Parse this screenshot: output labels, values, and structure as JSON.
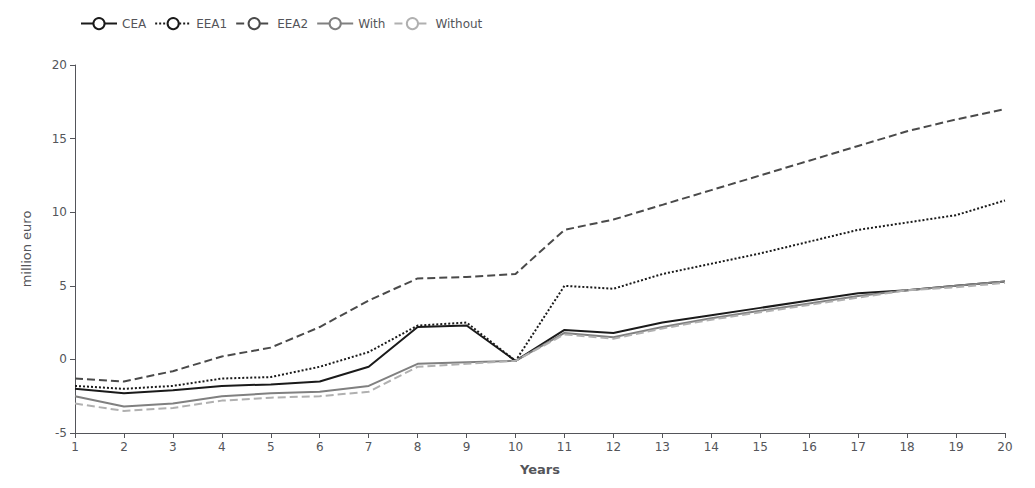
{
  "chart_data": {
    "type": "line",
    "x": [
      1,
      2,
      3,
      4,
      5,
      6,
      7,
      8,
      9,
      10,
      11,
      12,
      13,
      14,
      15,
      16,
      17,
      18,
      19,
      20
    ],
    "xlim": [
      1,
      20
    ],
    "xticks": [
      1,
      2,
      3,
      4,
      5,
      6,
      7,
      8,
      9,
      10,
      11,
      12,
      13,
      14,
      15,
      16,
      17,
      18,
      19,
      20
    ],
    "ylim": [
      -5,
      20
    ],
    "yticks": [
      -5,
      0,
      5,
      10,
      15,
      20
    ],
    "xlabel": "Years",
    "ylabel": "million euro",
    "legend": "upper left",
    "grid": false,
    "series": [
      {
        "name": "CEA",
        "color": "#1a1a1a",
        "line_style": "solid",
        "values": [
          -2.0,
          -2.3,
          -2.1,
          -1.8,
          -1.7,
          -1.5,
          -0.5,
          2.2,
          2.3,
          -0.1,
          2.0,
          1.8,
          2.5,
          3.0,
          3.5,
          4.0,
          4.5,
          4.7,
          5.0,
          5.3
        ]
      },
      {
        "name": "EEA1",
        "color": "#1a1a1a",
        "line_style": "dotted",
        "values": [
          -1.8,
          -2.0,
          -1.8,
          -1.3,
          -1.2,
          -0.5,
          0.5,
          2.3,
          2.5,
          -0.1,
          5.0,
          4.8,
          5.8,
          6.5,
          7.2,
          8.0,
          8.8,
          9.3,
          9.8,
          10.8
        ]
      },
      {
        "name": "EEA2",
        "color": "#4a4a4a",
        "line_style": "dashed",
        "values": [
          -1.3,
          -1.5,
          -0.8,
          0.2,
          0.8,
          2.2,
          4.0,
          5.5,
          5.6,
          5.8,
          8.8,
          9.5,
          10.5,
          11.5,
          12.5,
          13.5,
          14.5,
          15.5,
          16.3,
          17.0
        ]
      },
      {
        "name": "With",
        "color": "#808080",
        "line_style": "solid",
        "values": [
          -2.5,
          -3.2,
          -3.0,
          -2.5,
          -2.3,
          -2.2,
          -1.8,
          -0.3,
          -0.2,
          -0.1,
          1.8,
          1.5,
          2.2,
          2.8,
          3.3,
          3.8,
          4.3,
          4.7,
          5.0,
          5.3
        ]
      },
      {
        "name": "Without",
        "color": "#b0b0b0",
        "line_style": "dashed",
        "values": [
          -3.0,
          -3.5,
          -3.3,
          -2.8,
          -2.6,
          -2.5,
          -2.2,
          -0.5,
          -0.3,
          -0.1,
          1.7,
          1.4,
          2.1,
          2.7,
          3.2,
          3.7,
          4.2,
          4.7,
          4.9,
          5.2
        ]
      }
    ]
  }
}
